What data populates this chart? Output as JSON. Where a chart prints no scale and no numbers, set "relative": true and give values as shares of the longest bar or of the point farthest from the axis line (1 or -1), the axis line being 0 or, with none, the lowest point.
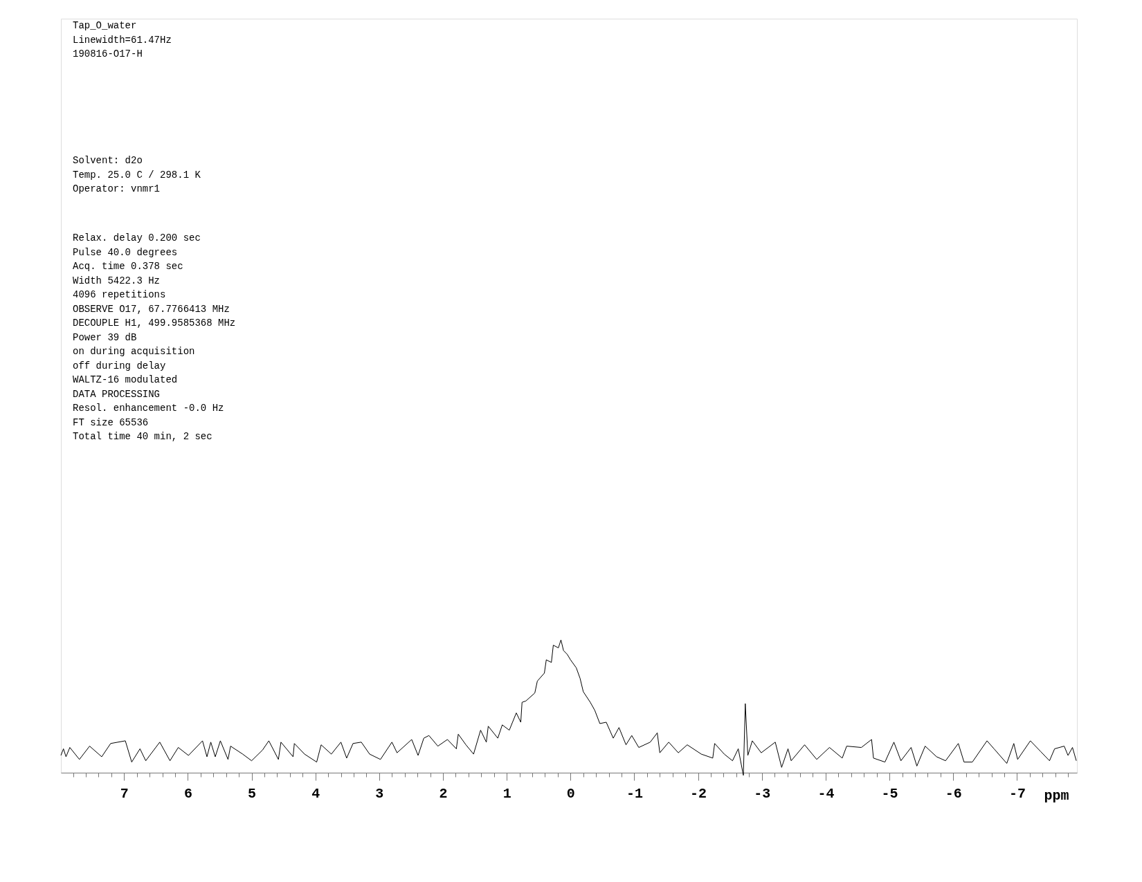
{
  "chart_data": {
    "type": "line",
    "relative": true,
    "xlabel": "ppm",
    "xlim": [
      7.99,
      -7.94
    ],
    "xticks": [
      7,
      6,
      5,
      4,
      3,
      2,
      1,
      0,
      -1,
      -2,
      -3,
      -4,
      -5,
      -6,
      -7,
      {
        "value": 7.8,
        "label": null
      },
      {
        "value": 7.6,
        "label": null
      },
      {
        "value": 7.4,
        "label": null
      },
      {
        "value": 7.2,
        "label": null
      },
      {
        "value": 6.8,
        "label": null
      },
      {
        "value": 6.6,
        "label": null
      },
      {
        "value": 6.4,
        "label": null
      },
      {
        "value": 6.2,
        "label": null
      },
      {
        "value": 5.8,
        "label": null
      },
      {
        "value": 5.6,
        "label": null
      },
      {
        "value": 5.4,
        "label": null
      },
      {
        "value": 5.2,
        "label": null
      },
      {
        "value": 4.8,
        "label": null
      },
      {
        "value": 4.6,
        "label": null
      },
      {
        "value": 4.4,
        "label": null
      },
      {
        "value": 4.2,
        "label": null
      },
      {
        "value": 3.8,
        "label": null
      },
      {
        "value": 3.6,
        "label": null
      },
      {
        "value": 3.4,
        "label": null
      },
      {
        "value": 3.2,
        "label": null
      },
      {
        "value": 2.8,
        "label": null
      },
      {
        "value": 2.6,
        "label": null
      },
      {
        "value": 2.4,
        "label": null
      },
      {
        "value": 2.2,
        "label": null
      },
      {
        "value": 1.8,
        "label": null
      },
      {
        "value": 1.6,
        "label": null
      },
      {
        "value": 1.4,
        "label": null
      },
      {
        "value": 1.2,
        "label": null
      },
      {
        "value": 0.8,
        "label": null
      },
      {
        "value": 0.6,
        "label": null
      },
      {
        "value": 0.4,
        "label": null
      },
      {
        "value": 0.2,
        "label": null
      },
      {
        "value": -0.2,
        "label": null
      },
      {
        "value": -0.4,
        "label": null
      },
      {
        "value": -0.6,
        "label": null
      },
      {
        "value": -0.8,
        "label": null
      },
      {
        "value": -1.2,
        "label": null
      },
      {
        "value": -1.4,
        "label": null
      },
      {
        "value": -1.6,
        "label": null
      },
      {
        "value": -1.8,
        "label": null
      },
      {
        "value": -2.2,
        "label": null
      },
      {
        "value": -2.4,
        "label": null
      },
      {
        "value": -2.6,
        "label": null
      },
      {
        "value": -2.8,
        "label": null
      },
      {
        "value": -3.2,
        "label": null
      },
      {
        "value": -3.4,
        "label": null
      },
      {
        "value": -3.6,
        "label": null
      },
      {
        "value": -3.8,
        "label": null
      },
      {
        "value": -4.2,
        "label": null
      },
      {
        "value": -4.4,
        "label": null
      },
      {
        "value": -4.6,
        "label": null
      },
      {
        "value": -4.8,
        "label": null
      },
      {
        "value": -5.2,
        "label": null
      },
      {
        "value": -5.4,
        "label": null
      },
      {
        "value": -5.6,
        "label": null
      },
      {
        "value": -5.8,
        "label": null
      },
      {
        "value": -6.2,
        "label": null
      },
      {
        "value": -6.4,
        "label": null
      },
      {
        "value": -6.6,
        "label": null
      },
      {
        "value": -6.8,
        "label": null
      },
      {
        "value": -7.2,
        "label": null
      },
      {
        "value": -7.4,
        "label": null
      },
      {
        "value": -7.6,
        "label": null
      },
      {
        "value": -7.8,
        "label": null
      }
    ],
    "grid": false,
    "marker": "none",
    "line_style": "solid",
    "series": [
      {
        "color": "#000000",
        "x": [
          7.99,
          7.95,
          7.91,
          7.85,
          7.7,
          7.54,
          7.35,
          7.21,
          6.98,
          6.88,
          6.75,
          6.66,
          6.44,
          6.28,
          6.15,
          5.99,
          5.77,
          5.7,
          5.64,
          5.57,
          5.49,
          5.37,
          5.33,
          5.14,
          5.0,
          4.83,
          4.73,
          4.58,
          4.54,
          4.35,
          4.33,
          4.17,
          3.98,
          3.91,
          3.75,
          3.6,
          3.51,
          3.41,
          3.28,
          3.15,
          2.98,
          2.8,
          2.72,
          2.49,
          2.39,
          2.3,
          2.22,
          2.08,
          1.93,
          1.79,
          1.76,
          1.64,
          1.52,
          1.41,
          1.32,
          1.29,
          1.14,
          1.07,
          0.96,
          0.85,
          0.78,
          0.76,
          0.7,
          0.56,
          0.52,
          0.41,
          0.38,
          0.3,
          0.27,
          0.19,
          0.15,
          0.11,
          0.05,
          0.0,
          -0.09,
          -0.15,
          -0.2,
          -0.31,
          -0.38,
          -0.46,
          -0.56,
          -0.67,
          -0.76,
          -0.87,
          -0.96,
          -1.07,
          -1.25,
          -1.36,
          -1.4,
          -1.54,
          -1.69,
          -1.83,
          -2.05,
          -2.23,
          -2.26,
          -2.41,
          -2.54,
          -2.63,
          -2.71,
          -2.74,
          -2.78,
          -2.85,
          -2.99,
          -3.21,
          -3.31,
          -3.41,
          -3.46,
          -3.67,
          -3.86,
          -4.06,
          -4.26,
          -4.33,
          -4.56,
          -4.72,
          -4.75,
          -4.93,
          -5.07,
          -5.18,
          -5.34,
          -5.43,
          -5.56,
          -5.74,
          -5.88,
          -6.08,
          -6.17,
          -6.3,
          -6.53,
          -6.64,
          -6.84,
          -6.95,
          -7.01,
          -7.21,
          -7.37,
          -7.51,
          -7.59,
          -7.74,
          -7.8,
          -7.87,
          -7.93
        ],
        "values": [
          0.13,
          0.18,
          0.12,
          0.19,
          0.1,
          0.2,
          0.12,
          0.22,
          0.24,
          0.08,
          0.18,
          0.09,
          0.23,
          0.09,
          0.19,
          0.13,
          0.24,
          0.12,
          0.23,
          0.12,
          0.24,
          0.1,
          0.2,
          0.14,
          0.09,
          0.17,
          0.24,
          0.1,
          0.23,
          0.12,
          0.22,
          0.14,
          0.08,
          0.21,
          0.14,
          0.23,
          0.11,
          0.22,
          0.23,
          0.14,
          0.1,
          0.23,
          0.15,
          0.25,
          0.13,
          0.26,
          0.28,
          0.2,
          0.25,
          0.18,
          0.29,
          0.21,
          0.14,
          0.32,
          0.23,
          0.35,
          0.26,
          0.36,
          0.32,
          0.45,
          0.38,
          0.53,
          0.54,
          0.6,
          0.69,
          0.75,
          0.85,
          0.83,
          0.96,
          0.94,
          1.0,
          0.92,
          0.89,
          0.85,
          0.79,
          0.71,
          0.61,
          0.53,
          0.47,
          0.37,
          0.38,
          0.26,
          0.34,
          0.21,
          0.28,
          0.19,
          0.23,
          0.3,
          0.15,
          0.23,
          0.15,
          0.21,
          0.14,
          0.11,
          0.22,
          0.14,
          0.09,
          0.18,
          -0.02,
          0.52,
          0.13,
          0.24,
          0.15,
          0.23,
          0.04,
          0.18,
          0.09,
          0.21,
          0.1,
          0.19,
          0.11,
          0.2,
          0.19,
          0.25,
          0.11,
          0.08,
          0.23,
          0.09,
          0.19,
          0.05,
          0.2,
          0.12,
          0.09,
          0.22,
          0.08,
          0.08,
          0.24,
          0.18,
          0.07,
          0.22,
          0.1,
          0.24,
          0.16,
          0.09,
          0.18,
          0.2,
          0.13,
          0.19,
          0.09
        ]
      }
    ],
    "annotations": [
      "Tap_O_water\nLinewidth=61.47Hz\n190816-O17-H",
      "Solvent: d2o\nTemp. 25.0 C / 298.1 K\nOperator: vnmr1",
      "Relax. delay 0.200 sec\nPulse 40.0 degrees\nAcq. time 0.378 sec\nWidth 5422.3 Hz\n4096 repetitions\nOBSERVE  O17,  67.7766413 MHz\nDECOUPLE  H1, 499.9585368 MHz\nPower 39 dB\non during acquisition\noff during delay\nWALTZ-16 modulated\nDATA PROCESSING\nResol. enhancement -0.0 Hz\nFT size 65536\nTotal time 40 min, 2 sec"
    ]
  }
}
